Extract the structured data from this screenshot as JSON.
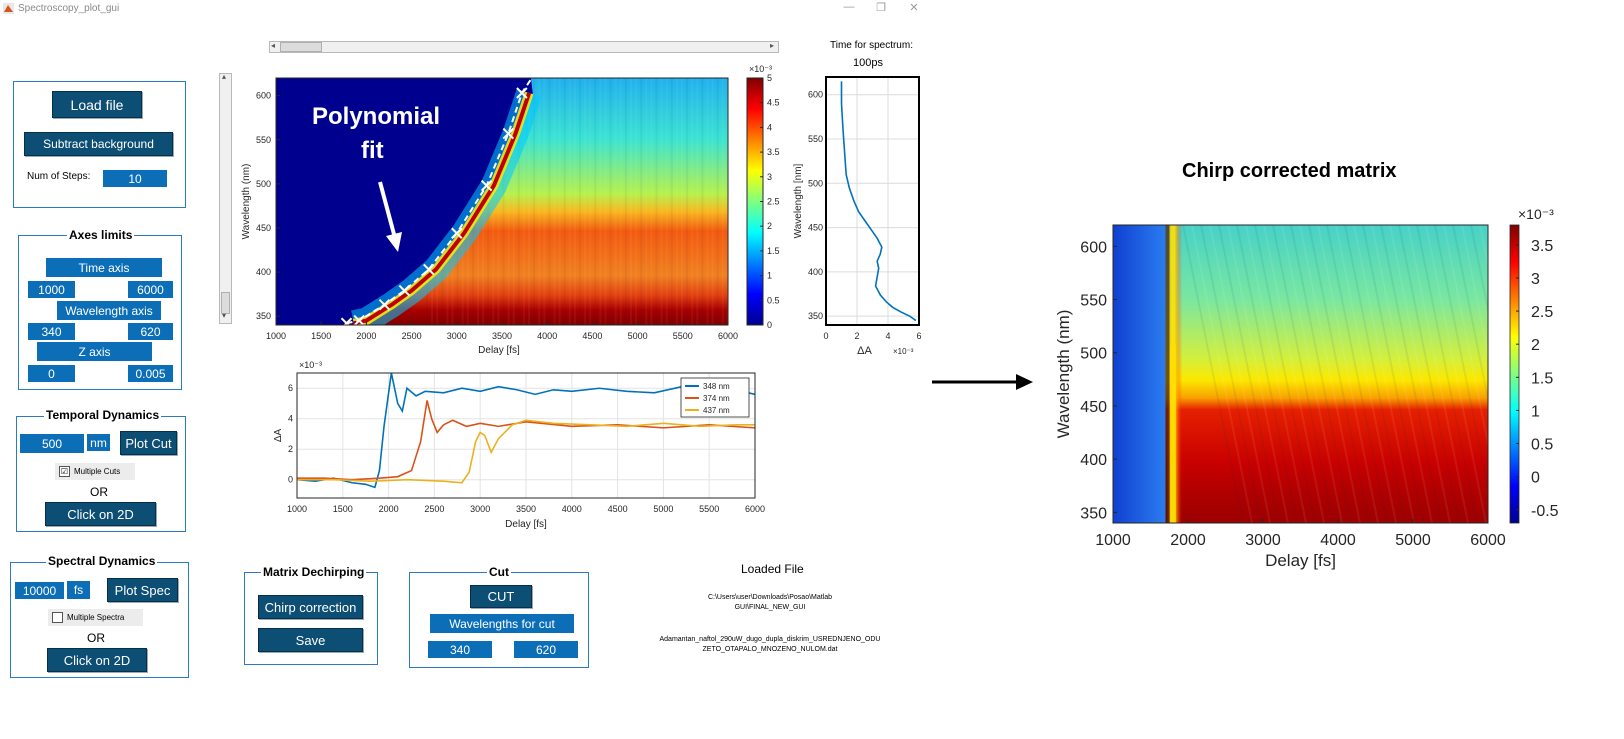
{
  "window": {
    "title": "Spectroscopy_plot_gui",
    "minimize_glyph": "—",
    "restore_glyph": "❐",
    "close_glyph": "✕"
  },
  "controls": {
    "load_file": "Load file",
    "subtract_background": "Subtract background",
    "num_steps_label": "Num of Steps:",
    "num_steps_value": "10"
  },
  "axes_limits": {
    "title": "Axes limits",
    "time_axis": "Time axis",
    "time_min": "1000",
    "time_max": "6000",
    "wavelength_axis": "Wavelength axis",
    "wl_min": "340",
    "wl_max": "620",
    "z_axis": "Z axis",
    "z_min": "0",
    "z_max": "0.005"
  },
  "temporal": {
    "title": "Temporal Dynamics",
    "value": "500",
    "unit": "nm",
    "plot_cut": "Plot Cut",
    "multiple_cuts": "Multiple Cuts",
    "multiple_cuts_checked": "☑",
    "or": "OR",
    "click_2d": "Click on 2D"
  },
  "spectral": {
    "title": "Spectral Dynamics",
    "value": "10000",
    "unit": "fs",
    "plot_spec": "Plot Spec",
    "multiple_spectra": "Multiple Spectra",
    "or": "OR",
    "click_2d": "Click on 2D"
  },
  "dechirp": {
    "title": "Matrix Dechirping",
    "chirp_correction": "Chirp correction",
    "save": "Save"
  },
  "cut": {
    "title": "Cut",
    "cut_button": "CUT",
    "wavelengths_for_cut": "Wavelengths for cut",
    "wl_min": "340",
    "wl_max": "620"
  },
  "loaded_file": {
    "title": "Loaded File",
    "path_line1": "C:\\Users\\user\\Downloads\\Posao\\Matlab",
    "path_line2": "GUI\\FINAL_NEW_GUI",
    "name_line1": "Adamantan_naftol_290uW_dugo_dupla_diskrim_USREDNJENO_ODU",
    "name_line2": "ZETO_OTAPALO_MNOZENO_NULOM.dat"
  },
  "spectrum_panel": {
    "title_line1": "Time for spectrum:",
    "title_line2": "100ps"
  },
  "annotations": {
    "polynomial_line1": "Polynomial",
    "polynomial_line2": "fit",
    "chirp_corrected_title": "Chirp corrected matrix"
  },
  "chart_data": [
    {
      "id": "raw-map",
      "type": "heatmap",
      "xlabel": "Delay [fs]",
      "ylabel": "Wavelength (nm)",
      "xlim": [
        1000,
        6000
      ],
      "ylim": [
        340,
        620
      ],
      "xticks": [
        "1000",
        "1500",
        "2000",
        "2500",
        "3000",
        "3500",
        "4000",
        "4500",
        "5000",
        "5500",
        "6000"
      ],
      "yticks": [
        "350",
        "400",
        "450",
        "500",
        "550",
        "600"
      ],
      "colorbar": {
        "range": [
          0,
          0.005
        ],
        "ticks": [
          "0",
          "0.5",
          "1",
          "1.5",
          "2",
          "2.5",
          "3",
          "3.5",
          "4",
          "4.5",
          "5"
        ],
        "exponent": "×10⁻³",
        "colormap": "jet"
      },
      "polynomial_fit_points": [
        {
          "x": 1780,
          "y": 342
        },
        {
          "x": 1920,
          "y": 345
        },
        {
          "x": 2200,
          "y": 363
        },
        {
          "x": 2420,
          "y": 379
        },
        {
          "x": 2690,
          "y": 403
        },
        {
          "x": 3000,
          "y": 444
        },
        {
          "x": 3330,
          "y": 498
        },
        {
          "x": 3570,
          "y": 557
        },
        {
          "x": 3720,
          "y": 603
        }
      ],
      "fit_line_color": "#ffffff"
    },
    {
      "id": "spectrum",
      "type": "line",
      "xlabel": "ΔA",
      "ylabel": "Wavelength [nm]",
      "xlim": [
        0,
        6
      ],
      "ylim": [
        340,
        620
      ],
      "xticks": [
        "0",
        "2",
        "4",
        "6"
      ],
      "yticks": [
        "350",
        "400",
        "450",
        "500",
        "550",
        "600"
      ],
      "exponent": "×10⁻³",
      "series": [
        {
          "color": "#0072bd",
          "x": [
            1.0,
            1.0,
            1.1,
            1.2,
            1.3,
            1.5,
            1.8,
            2.1,
            2.5,
            2.9,
            3.3,
            3.6,
            3.5,
            3.3,
            3.4,
            3.3,
            3.2,
            3.5,
            3.9,
            4.3,
            4.8,
            5.4,
            5.8
          ],
          "y": [
            615,
            590,
            560,
            535,
            510,
            495,
            480,
            468,
            458,
            448,
            438,
            428,
            420,
            412,
            404,
            394,
            384,
            374,
            366,
            360,
            355,
            350,
            345
          ]
        }
      ]
    },
    {
      "id": "kinetics",
      "type": "line",
      "xlabel": "Delay [fs]",
      "ylabel": "ΔA",
      "xlim": [
        1000,
        6000
      ],
      "ylim": [
        -1.2,
        7
      ],
      "xticks": [
        "1000",
        "1500",
        "2000",
        "2500",
        "3000",
        "3500",
        "4000",
        "4500",
        "5000",
        "5500",
        "6000"
      ],
      "yticks": [
        "0",
        "2",
        "4",
        "6"
      ],
      "exponent": "×10⁻³",
      "legend_position": "top-right",
      "series": [
        {
          "name": "348 nm",
          "color": "#0072bd",
          "x": [
            1000,
            1200,
            1400,
            1600,
            1750,
            1850,
            1900,
            1950,
            2030,
            2100,
            2150,
            2200,
            2300,
            2400,
            2600,
            2800,
            3000,
            3200,
            3400,
            3600,
            3800,
            4000,
            4300,
            4600,
            4900,
            5200,
            5500,
            5700,
            6000
          ],
          "y": [
            0,
            -0.1,
            0.1,
            -0.2,
            -0.3,
            -0.5,
            0.6,
            3.5,
            7.0,
            5.0,
            4.5,
            6.0,
            5.5,
            5.8,
            5.7,
            6.0,
            5.8,
            6.1,
            5.9,
            5.6,
            5.9,
            5.8,
            6.0,
            5.8,
            5.7,
            6.1,
            5.7,
            6.0,
            5.6
          ]
        },
        {
          "name": "374 nm",
          "color": "#d95319",
          "x": [
            1000,
            1300,
            1600,
            1900,
            2100,
            2250,
            2350,
            2420,
            2470,
            2530,
            2600,
            2700,
            2850,
            3000,
            3200,
            3500,
            4000,
            4500,
            5000,
            5500,
            6000
          ],
          "y": [
            0.1,
            0.1,
            0,
            0.1,
            0.2,
            0.6,
            2.5,
            5.2,
            4.0,
            3.1,
            3.6,
            3.9,
            3.5,
            3.7,
            3.5,
            3.8,
            3.5,
            3.6,
            3.4,
            3.6,
            3.4
          ]
        },
        {
          "name": "437 nm",
          "color": "#edb120",
          "x": [
            1000,
            1400,
            1800,
            2200,
            2600,
            2800,
            2880,
            2950,
            3000,
            3050,
            3120,
            3200,
            3350,
            3500,
            3800,
            4200,
            4600,
            5000,
            5400,
            5800,
            6000
          ],
          "y": [
            0,
            0,
            -0.1,
            0,
            -0.1,
            -0.2,
            0.5,
            2.5,
            3.1,
            2.9,
            1.8,
            2.7,
            3.6,
            3.9,
            3.7,
            3.6,
            3.5,
            3.7,
            3.5,
            3.6,
            3.6
          ]
        }
      ]
    },
    {
      "id": "corrected-map",
      "type": "heatmap",
      "title": "Chirp corrected matrix",
      "xlabel": "Delay [fs]",
      "ylabel": "Wavelength (nm)",
      "xlim": [
        1000,
        6000
      ],
      "ylim": [
        340,
        620
      ],
      "xticks": [
        "1000",
        "2000",
        "3000",
        "4000",
        "5000",
        "6000"
      ],
      "yticks": [
        "350",
        "400",
        "450",
        "500",
        "550",
        "600"
      ],
      "colorbar": {
        "range": [
          -0.0007,
          0.0038
        ],
        "ticks": [
          "-0.5",
          "0",
          "0.5",
          "1",
          "1.5",
          "2",
          "2.5",
          "3",
          "3.5"
        ],
        "exponent": "×10⁻³",
        "colormap": "jet"
      }
    }
  ]
}
